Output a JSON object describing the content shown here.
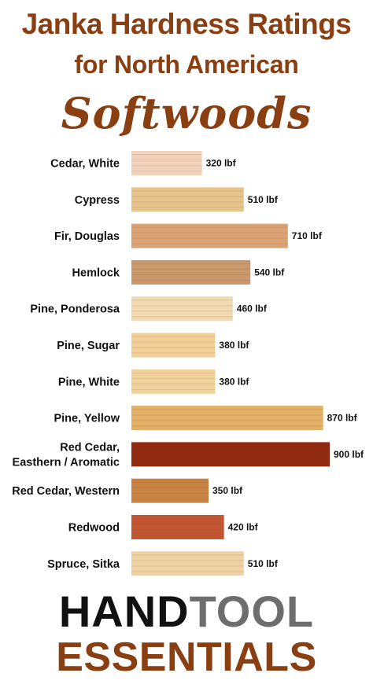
{
  "title": {
    "line1": "Janka Hardness Ratings",
    "line2": "for North American",
    "line3": "Softwoods"
  },
  "chart_data": {
    "type": "bar",
    "orientation": "horizontal",
    "title": "Janka Hardness Ratings for North American Softwoods",
    "unit": "lbf",
    "grid": false,
    "categories": [
      "Cedar, White",
      "Cypress",
      "Fir, Douglas",
      "Hemlock",
      "Pine, Ponderosa",
      "Pine, Sugar",
      "Pine, White",
      "Pine, Yellow",
      "Red Cedar, Easthern / Aromatic",
      "Red Cedar, Western",
      "Redwood",
      "Spruce, Sitka"
    ],
    "category_lines": [
      [
        "Cedar, White"
      ],
      [
        "Cypress"
      ],
      [
        "Fir, Douglas"
      ],
      [
        "Hemlock"
      ],
      [
        "Pine, Ponderosa"
      ],
      [
        "Pine, Sugar"
      ],
      [
        "Pine, White"
      ],
      [
        "Pine, Yellow"
      ],
      [
        "Red Cedar,",
        "Easthern / Aromatic"
      ],
      [
        "Red Cedar, Western"
      ],
      [
        "Redwood"
      ],
      [
        "Spruce, Sitka"
      ]
    ],
    "values": [
      320,
      510,
      710,
      540,
      460,
      380,
      380,
      870,
      900,
      350,
      420,
      510
    ],
    "value_labels": [
      "320 lbf",
      "510 lbf",
      "710 lbf",
      "540 lbf",
      "460 lbf",
      "380 lbf",
      "380 lbf",
      "870 lbf",
      "900 lbf",
      "350 lbf",
      "420 lbf",
      "510 lbf"
    ],
    "bar_colors": [
      "#f0d2bc",
      "#e6c48c",
      "#dba274",
      "#c9986c",
      "#f1d9b0",
      "#f0cf98",
      "#efd29c",
      "#e3b067",
      "#922a12",
      "#c98345",
      "#c25632",
      "#eed2a4"
    ],
    "xlim": [
      0,
      900
    ]
  },
  "brand": {
    "line1_part1": "HAND",
    "line1_part2": "TOOL",
    "line2": "ESSENTIALS",
    "colors": {
      "part1": "#111111",
      "part2": "#6d6d6d",
      "line2": "#8a3f12"
    }
  }
}
